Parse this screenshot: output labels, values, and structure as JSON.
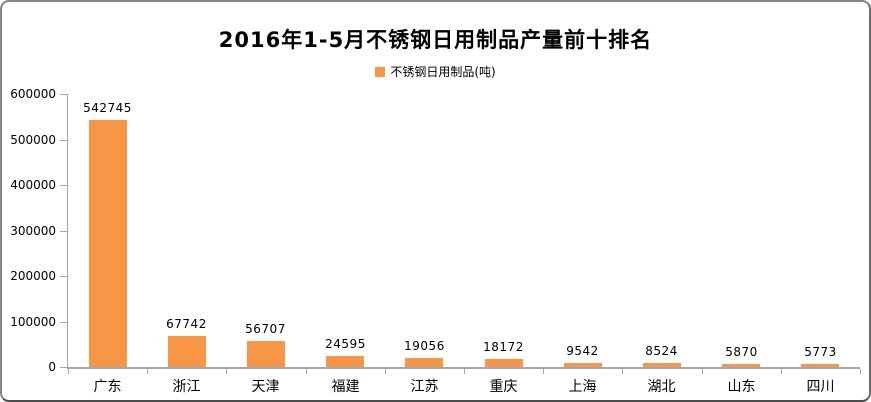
{
  "chart_data": {
    "type": "bar",
    "title": "2016年1-5月不锈钢日用制品产量前十排名",
    "legend": [
      {
        "label": "不锈钢日用制品(吨)",
        "color": "#f79646"
      }
    ],
    "legend_position": "top-center",
    "categories": [
      "广东",
      "浙江",
      "天津",
      "福建",
      "江苏",
      "重庆",
      "上海",
      "湖北",
      "山东",
      "四川"
    ],
    "values": [
      542745,
      67742,
      56707,
      24595,
      19056,
      18172,
      9542,
      8524,
      5870,
      5773
    ],
    "data_labels": [
      542745,
      67742,
      56707,
      24595,
      19056,
      18172,
      9542,
      8524,
      5870,
      5773
    ],
    "bar_color": "#f79646",
    "xlabel": "",
    "ylabel": "",
    "ylim": [
      0,
      600000
    ],
    "yticks": [
      0,
      100000,
      200000,
      300000,
      400000,
      500000,
      600000
    ],
    "grid": false,
    "axis_color": "#a6a6a6",
    "plot_background": "#ffffff"
  },
  "frame": {
    "background": "#ffffff",
    "border_color": "#858585"
  }
}
